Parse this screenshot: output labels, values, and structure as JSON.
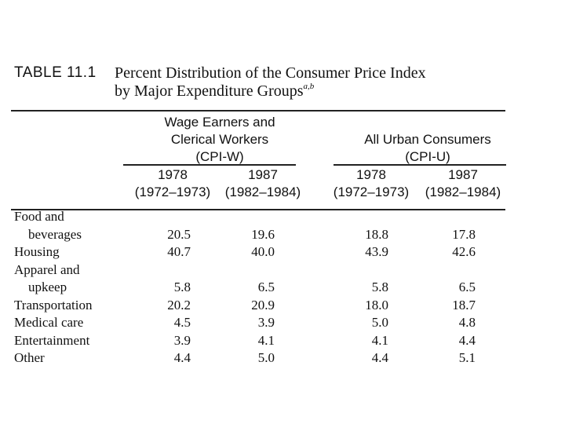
{
  "table_label": "TABLE 11.1",
  "title_line1": "Percent Distribution of the Consumer Price Index",
  "title_line2": "by Major Expenditure Groups",
  "title_superscript": "a,b",
  "groups": {
    "cpiw": [
      "Wage Earners and",
      "Clerical Workers",
      "(CPI-W)"
    ],
    "cpiu": [
      "All Urban Consumers",
      "(CPI-U)"
    ]
  },
  "columns": [
    {
      "year": "1978",
      "base": "(1972–1973)"
    },
    {
      "year": "1987",
      "base": "(1982–1984)"
    },
    {
      "year": "1978",
      "base": "(1972–1973)"
    },
    {
      "year": "1987",
      "base": "(1982–1984)"
    }
  ],
  "rows": [
    {
      "label_lines": [
        "Food and",
        "beverages"
      ],
      "values": [
        "20.5",
        "19.6",
        "18.8",
        "17.8"
      ]
    },
    {
      "label_lines": [
        "Housing"
      ],
      "values": [
        "40.7",
        "40.0",
        "43.9",
        "42.6"
      ]
    },
    {
      "label_lines": [
        "Apparel and",
        "upkeep"
      ],
      "values": [
        "5.8",
        "6.5",
        "5.8",
        "6.5"
      ]
    },
    {
      "label_lines": [
        "Transportation"
      ],
      "values": [
        "20.2",
        "20.9",
        "18.0",
        "18.7"
      ]
    },
    {
      "label_lines": [
        "Medical care"
      ],
      "values": [
        "4.5",
        "3.9",
        "5.0",
        "4.8"
      ]
    },
    {
      "label_lines": [
        "Entertainment"
      ],
      "values": [
        "3.9",
        "4.1",
        "4.1",
        "4.4"
      ]
    },
    {
      "label_lines": [
        "Other"
      ],
      "values": [
        "4.4",
        "5.0",
        "4.4",
        "5.1"
      ]
    }
  ]
}
